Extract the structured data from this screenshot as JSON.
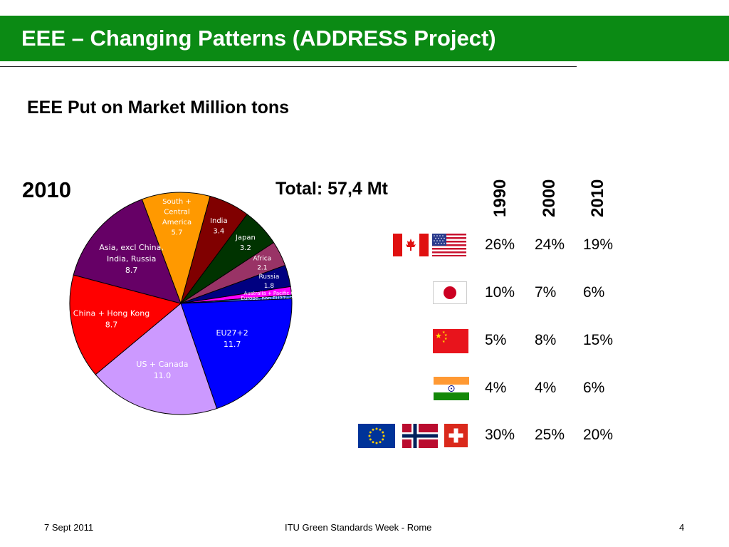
{
  "slide": {
    "title": "EEE – Changing Patterns (ADDRESS Project)",
    "subtitle": "EEE Put on Market Million tons",
    "year_label": "2010",
    "total_label": "Total: 57,4 Mt"
  },
  "chart_data": {
    "type": "pie",
    "unit": "Million tons",
    "slices": [
      {
        "label": "South + Central America",
        "value": 5.7,
        "color": "#ff9900",
        "label_color": "#ffffff"
      },
      {
        "label": "India",
        "value": 3.4,
        "color": "#800000",
        "label_color": "#ffffff"
      },
      {
        "label": "Japan",
        "value": 3.2,
        "color": "#003300",
        "label_color": "#ffffff"
      },
      {
        "label": "Africa",
        "value": 2.1,
        "color": "#993366",
        "label_color": "#ffffff"
      },
      {
        "label": "Russia",
        "value": 1.8,
        "color": "#000080",
        "label_color": "#ffffff"
      },
      {
        "label": "Australia + Pacific",
        "value": 0.7,
        "color": "#ff00ff",
        "label_color": "#ffffff"
      },
      {
        "label": "Europe, non EU27+2",
        "value": 0.3,
        "color": "#3366cc",
        "label_color": "#ffffff"
      },
      {
        "label": "EU27+2",
        "value": 11.7,
        "color": "#0000ff",
        "label_color": "#ffffff"
      },
      {
        "label": "US + Canada",
        "value": 11.0,
        "color": "#cc99ff",
        "label_color": "#ffffff"
      },
      {
        "label": "China + Hong Kong",
        "value": 8.7,
        "color": "#ff0000",
        "label_color": "#ffffff"
      },
      {
        "label": "Asia, excl China, India, Russia",
        "value": 8.7,
        "color": "#660066",
        "label_color": "#ffffff"
      }
    ]
  },
  "share_table": {
    "years": [
      "1990",
      "2000",
      "2010"
    ],
    "rows": [
      {
        "region": "US + Canada",
        "flags": [
          "canada-flag",
          "usa-flag"
        ],
        "values": [
          "26%",
          "24%",
          "19%"
        ]
      },
      {
        "region": "Japan",
        "flags": [
          "japan-flag"
        ],
        "values": [
          "10%",
          "7%",
          "6%"
        ]
      },
      {
        "region": "China",
        "flags": [
          "china-flag"
        ],
        "values": [
          "5%",
          "8%",
          "15%"
        ]
      },
      {
        "region": "India",
        "flags": [
          "india-flag"
        ],
        "values": [
          "4%",
          "4%",
          "6%"
        ]
      },
      {
        "region": "EU27+2",
        "flags": [
          "eu-flag",
          "norway-flag",
          "switzerland-flag"
        ],
        "values": [
          "30%",
          "25%",
          "20%"
        ]
      }
    ]
  },
  "footer": {
    "date": "7 Sept 2011",
    "event": "ITU Green Standards Week - Rome",
    "page": "4"
  },
  "colors": {
    "header_green": "#0b8a14"
  }
}
